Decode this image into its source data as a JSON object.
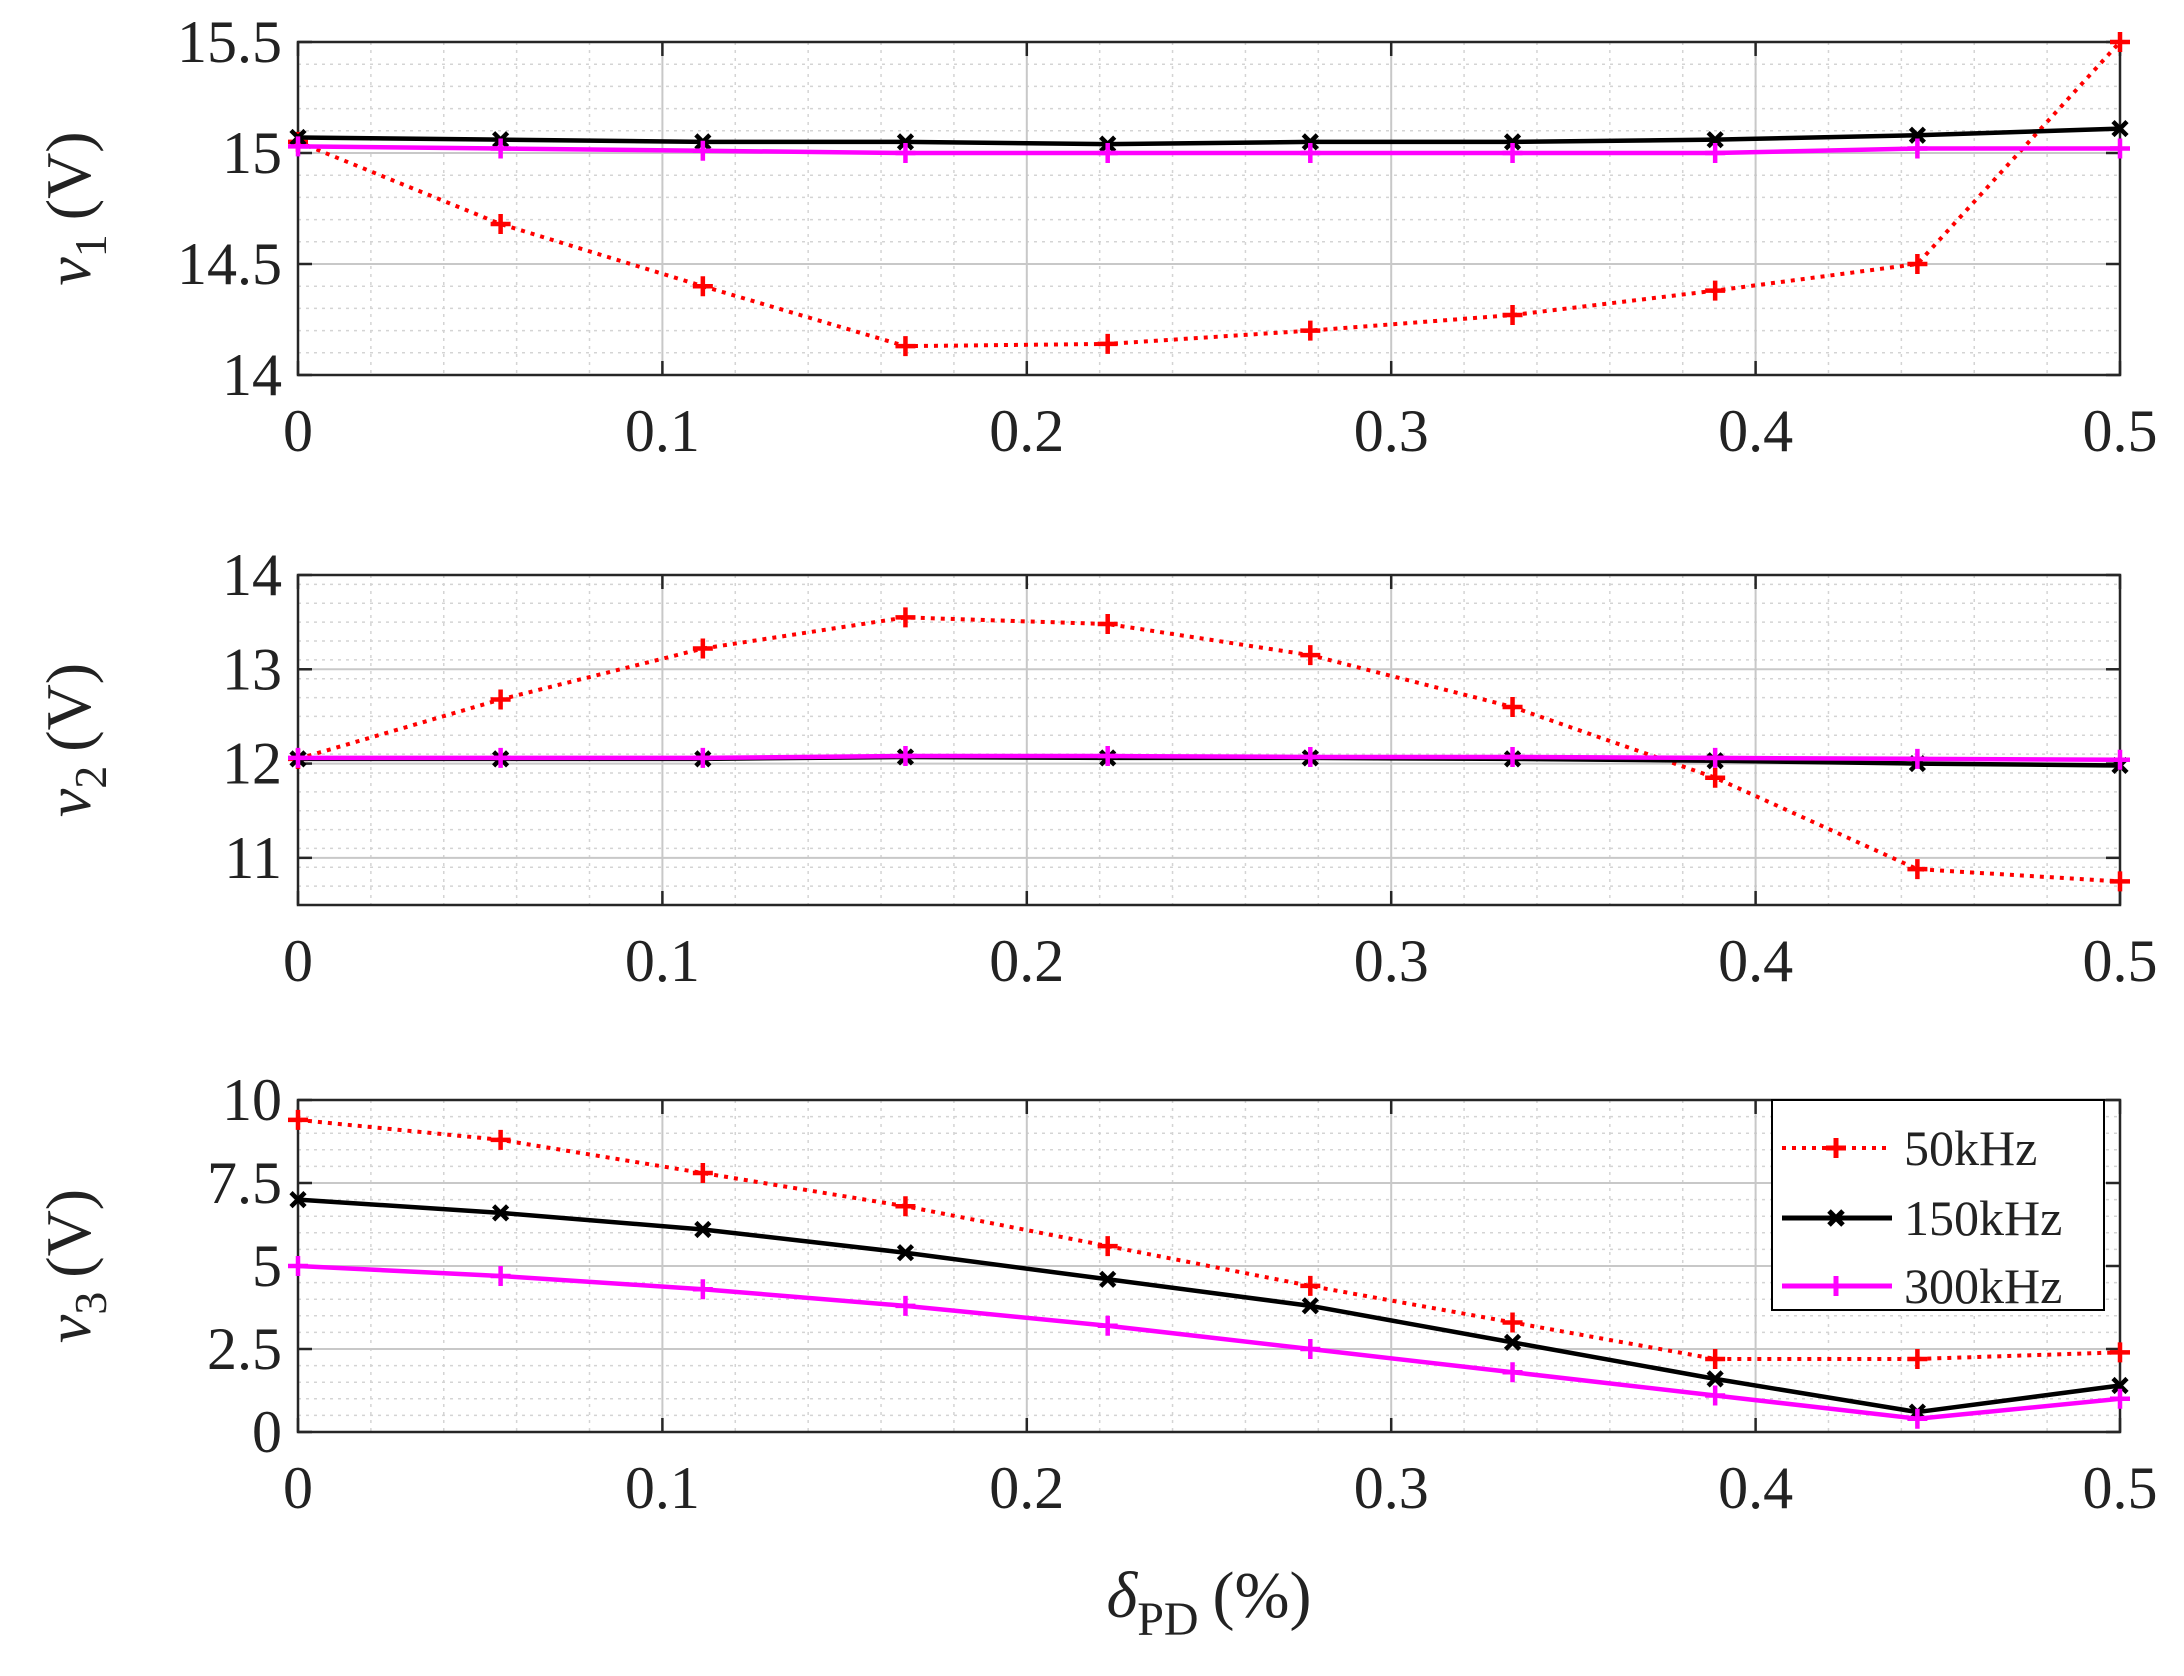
{
  "chart_data": [
    {
      "type": "line",
      "ylabel_var": "v",
      "ylabel_sub": "1",
      "ylabel_unit": "(V)",
      "xlim": [
        0,
        0.5
      ],
      "ylim": [
        14,
        15.5
      ],
      "xticks": [
        "0",
        "0.1",
        "0.2",
        "0.3",
        "0.4",
        "0.5"
      ],
      "yticks": [
        "14",
        "14.5",
        "15",
        "15.5"
      ],
      "ytick_values": [
        14,
        14.5,
        15,
        15.5
      ],
      "grid": true,
      "x": [
        0,
        0.0556,
        0.1111,
        0.1667,
        0.2222,
        0.2778,
        0.3333,
        0.3889,
        0.4444,
        0.5
      ],
      "series": [
        {
          "name": "50kHz",
          "values": [
            15.05,
            14.68,
            14.4,
            14.13,
            14.14,
            14.2,
            14.27,
            14.38,
            14.5,
            15.5
          ]
        },
        {
          "name": "150kHz",
          "values": [
            15.07,
            15.06,
            15.05,
            15.05,
            15.04,
            15.05,
            15.05,
            15.06,
            15.08,
            15.11
          ]
        },
        {
          "name": "300kHz",
          "values": [
            15.03,
            15.02,
            15.01,
            15.0,
            15.0,
            15.0,
            15.0,
            15.0,
            15.02,
            15.02
          ]
        }
      ]
    },
    {
      "type": "line",
      "ylabel_var": "v",
      "ylabel_sub": "2",
      "ylabel_unit": "(V)",
      "xlim": [
        0,
        0.5
      ],
      "ylim": [
        10.5,
        14
      ],
      "xticks": [
        "0",
        "0.1",
        "0.2",
        "0.3",
        "0.4",
        "0.5"
      ],
      "yticks": [
        "11",
        "12",
        "13",
        "14"
      ],
      "ytick_values": [
        11,
        12,
        13,
        14
      ],
      "grid": true,
      "x": [
        0,
        0.0556,
        0.1111,
        0.1667,
        0.2222,
        0.2778,
        0.3333,
        0.3889,
        0.4444,
        0.5
      ],
      "series": [
        {
          "name": "50kHz",
          "values": [
            12.05,
            12.68,
            13.22,
            13.55,
            13.48,
            13.15,
            12.6,
            11.85,
            10.88,
            10.75
          ]
        },
        {
          "name": "150kHz",
          "values": [
            12.05,
            12.05,
            12.05,
            12.07,
            12.06,
            12.06,
            12.05,
            12.03,
            12.0,
            11.98
          ]
        },
        {
          "name": "300kHz",
          "values": [
            12.06,
            12.06,
            12.06,
            12.08,
            12.08,
            12.07,
            12.07,
            12.06,
            12.05,
            12.04
          ]
        }
      ]
    },
    {
      "type": "line",
      "ylabel_var": "v",
      "ylabel_sub": "3",
      "ylabel_unit": "(V)",
      "xlabel_var": "δ",
      "xlabel_sub": "PD",
      "xlabel_unit": "(%)",
      "xlim": [
        0,
        0.5
      ],
      "ylim": [
        0,
        10
      ],
      "xticks": [
        "0",
        "0.1",
        "0.2",
        "0.3",
        "0.4",
        "0.5"
      ],
      "yticks": [
        "0",
        "2.5",
        "5",
        "7.5",
        "10"
      ],
      "ytick_values": [
        0,
        2.5,
        5,
        7.5,
        10
      ],
      "grid": true,
      "legend": "top-right",
      "x": [
        0,
        0.0556,
        0.1111,
        0.1667,
        0.2222,
        0.2778,
        0.3333,
        0.3889,
        0.4444,
        0.5
      ],
      "series": [
        {
          "name": "50kHz",
          "values": [
            9.4,
            8.8,
            7.8,
            6.8,
            5.6,
            4.4,
            3.3,
            2.2,
            2.2,
            2.4
          ]
        },
        {
          "name": "150kHz",
          "values": [
            7.0,
            6.6,
            6.1,
            5.4,
            4.6,
            3.8,
            2.7,
            1.6,
            0.6,
            1.4
          ]
        },
        {
          "name": "300kHz",
          "values": [
            5.0,
            4.7,
            4.3,
            3.8,
            3.2,
            2.5,
            1.8,
            1.1,
            0.4,
            1.0
          ]
        }
      ]
    }
  ],
  "series_styles": {
    "50kHz": {
      "color": "#ff0000",
      "marker": "plus",
      "dash": "dotted"
    },
    "150kHz": {
      "color": "#000000",
      "marker": "cross",
      "dash": "solid"
    },
    "300kHz": {
      "color": "#ff00ff",
      "marker": "plus",
      "dash": "solid"
    }
  },
  "legend_entries": [
    "50kHz",
    "150kHz",
    "300kHz"
  ]
}
